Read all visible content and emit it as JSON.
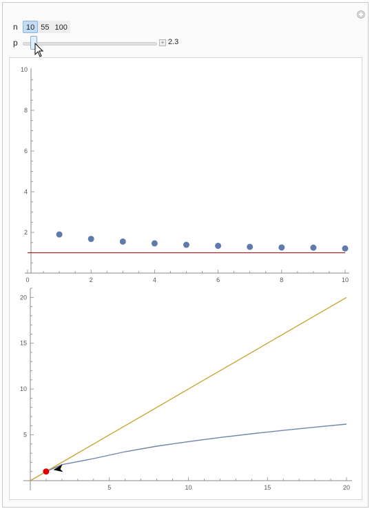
{
  "controls": {
    "n": {
      "label": "n",
      "options": [
        "10",
        "55",
        "100"
      ],
      "selected": "10"
    },
    "p": {
      "label": "p",
      "value": 2.3,
      "value_text": "2.3",
      "min": 1,
      "max": 20,
      "plus_glyph": "+"
    }
  },
  "icons": {
    "corner": "plus-circle-icon",
    "cursor": "mouse-pointer-icon"
  },
  "colors": {
    "points": "#5e7bab",
    "reference_line": "#a0262c",
    "line_yellow": "#c8a02a",
    "curve_blue": "#6e86a7",
    "red_marker": "#e00000"
  },
  "chart_data": [
    {
      "type": "scatter",
      "xlim": [
        0,
        10
      ],
      "ylim": [
        0,
        10
      ],
      "xticks": [
        0,
        2,
        4,
        6,
        8,
        10
      ],
      "yticks": [
        2,
        4,
        6,
        8,
        10
      ],
      "x": [
        1,
        2,
        3,
        4,
        5,
        6,
        7,
        8,
        9,
        10
      ],
      "y": [
        1.9,
        1.68,
        1.55,
        1.46,
        1.39,
        1.34,
        1.29,
        1.26,
        1.25,
        1.21
      ],
      "reference_line_y": 1.0
    },
    {
      "type": "line",
      "xlim": [
        0,
        20
      ],
      "ylim": [
        0,
        21
      ],
      "xticks": [
        5,
        10,
        15,
        20
      ],
      "yticks": [
        5,
        10,
        15,
        20
      ],
      "line": {
        "x": [
          0,
          20
        ],
        "y": [
          0,
          20
        ]
      },
      "curve": {
        "x": [
          1,
          2,
          4,
          6,
          8,
          10,
          12,
          14,
          16,
          18,
          20
        ],
        "y": [
          1.0,
          1.75,
          2.41,
          3.16,
          3.76,
          4.26,
          4.71,
          5.12,
          5.49,
          5.84,
          6.17
        ]
      },
      "point": {
        "x": 1,
        "y": 1
      },
      "arrow_tip": {
        "x": 1.2,
        "y": 1.1
      }
    }
  ]
}
